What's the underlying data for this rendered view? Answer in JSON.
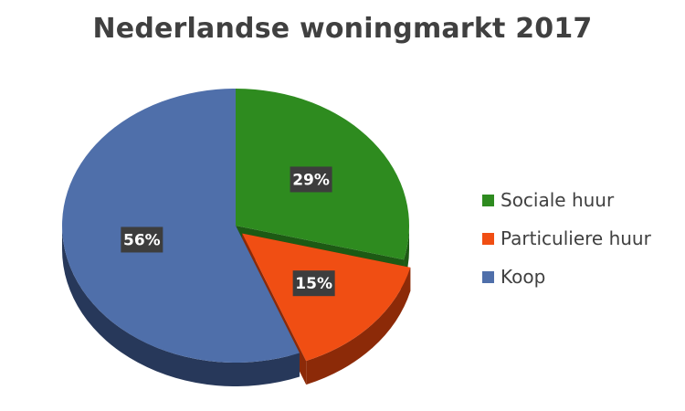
{
  "chart_data": {
    "type": "pie",
    "title": "Nederlandse woningmarkt 2017",
    "categories": [
      "Sociale huur",
      "Particuliere huur",
      "Koop"
    ],
    "values": [
      29,
      15,
      56
    ],
    "data_labels": [
      "29%",
      "15%",
      "56%"
    ],
    "colors": [
      "#2e8b1f",
      "#f04e13",
      "#4f6faa"
    ],
    "side_colors": [
      "#1d5a14",
      "#8c2a08",
      "#27385a"
    ],
    "exploded_slice": "Particuliere huur",
    "style": "3d-tilted",
    "legend_position": "right"
  }
}
